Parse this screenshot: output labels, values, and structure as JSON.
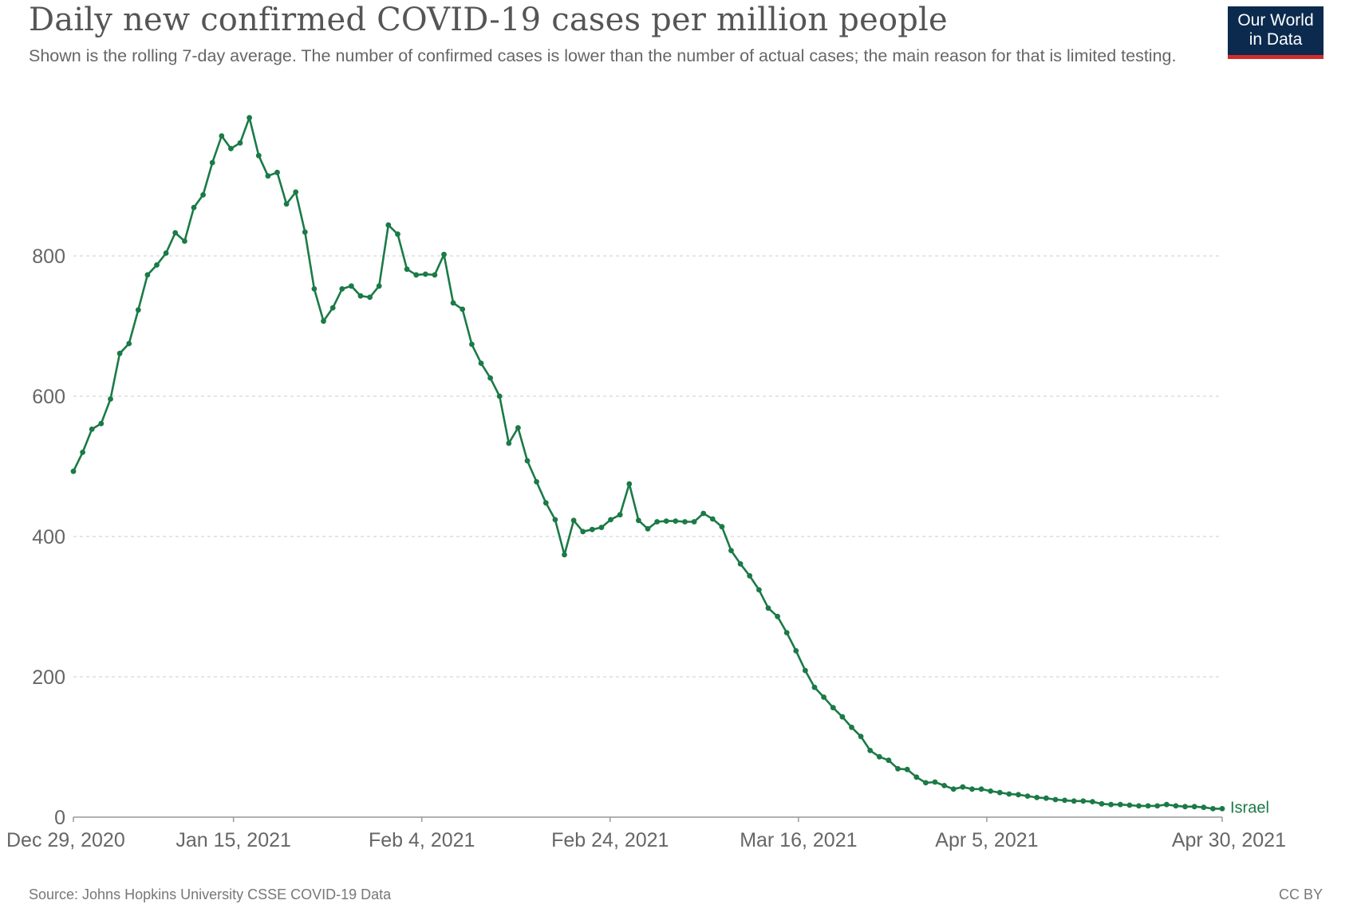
{
  "header": {
    "title": "Daily new confirmed COVID-19 cases per million people",
    "subtitle": "Shown is the rolling 7-day average. The number of confirmed cases is lower than the number of actual cases; the main reason for that is limited testing."
  },
  "logo": {
    "line1": "Our World",
    "line2": "in Data"
  },
  "footer": {
    "source": "Source: Johns Hopkins University CSSE COVID-19 Data",
    "license": "CC BY"
  },
  "colors": {
    "series": "#1b7a47",
    "grid": "#dddddd",
    "axis": "#999999",
    "logo_bg": "#0b2a4e",
    "logo_bar": "#d12c2c"
  },
  "chart_data": {
    "type": "line",
    "title": "Daily new confirmed COVID-19 cases per million people",
    "xlabel": "",
    "ylabel": "",
    "x_start": "2020-12-29",
    "x_end": "2021-04-30",
    "x_tick_labels": [
      "Dec 29, 2020",
      "Jan 15, 2021",
      "Feb 4, 2021",
      "Feb 24, 2021",
      "Mar 16, 2021",
      "Apr 5, 2021",
      "Apr 30, 2021"
    ],
    "x_tick_dates": [
      "2020-12-29",
      "2021-01-15",
      "2021-02-04",
      "2021-02-24",
      "2021-03-16",
      "2021-04-05",
      "2021-04-30"
    ],
    "y_ticks": [
      0,
      200,
      400,
      600,
      800
    ],
    "ylim": [
      0,
      1000
    ],
    "grid": true,
    "series": [
      {
        "name": "Israel",
        "values": [
          493,
          520,
          553,
          561,
          596,
          661,
          675,
          723,
          773,
          787,
          804,
          833,
          821,
          869,
          887,
          933,
          971,
          953,
          961,
          997,
          943,
          914,
          919,
          874,
          891,
          834,
          753,
          707,
          726,
          753,
          757,
          743,
          741,
          757,
          844,
          831,
          781,
          773,
          774,
          773,
          802,
          733,
          724,
          674,
          647,
          626,
          600,
          533,
          555,
          508,
          478,
          448,
          424,
          374,
          423,
          407,
          410,
          413,
          424,
          431,
          475,
          423,
          411,
          421,
          422,
          422,
          421,
          421,
          433,
          425,
          414,
          380,
          361,
          344,
          324,
          298,
          286,
          263,
          237,
          209,
          185,
          171,
          156,
          143,
          128,
          115,
          95,
          86,
          81,
          69,
          68,
          57,
          49,
          50,
          45,
          40,
          43,
          40,
          40,
          37,
          35,
          33,
          32,
          30,
          28,
          27,
          25,
          24,
          23,
          23,
          22,
          19,
          18,
          18,
          17,
          16,
          16,
          16,
          18,
          16,
          15,
          15,
          14,
          12,
          12
        ]
      }
    ]
  }
}
